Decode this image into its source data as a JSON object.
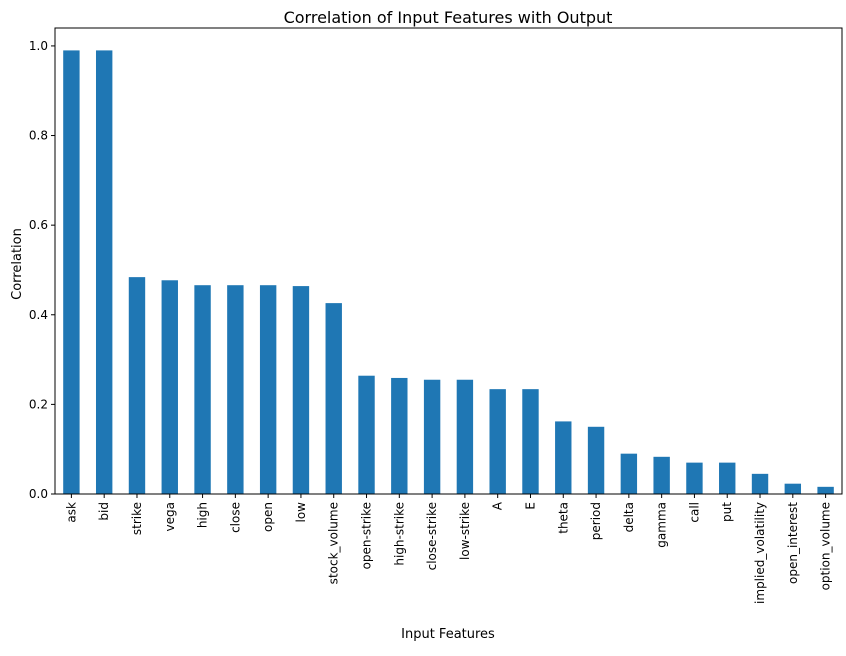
{
  "chart_data": {
    "type": "bar",
    "title": "Correlation of Input Features with Output",
    "xlabel": "Input Features",
    "ylabel": "Correlation",
    "ylim": [
      0,
      1.04
    ],
    "yticks": [
      "0.0",
      "0.2",
      "0.4",
      "0.6",
      "0.8",
      "1.0"
    ],
    "grid": false,
    "bar_color": "#1f77b4",
    "categories": [
      "ask",
      "bid",
      "strike",
      "vega",
      "high",
      "close",
      "open",
      "low",
      "stock_volume",
      "open-strike",
      "high-strike",
      "close-strike",
      "low-strike",
      "A",
      "E",
      "theta",
      "period",
      "delta",
      "gamma",
      "call",
      "put",
      "implied_volatility",
      "open_interest",
      "option_volume"
    ],
    "values": [
      0.99,
      0.99,
      0.484,
      0.477,
      0.466,
      0.466,
      0.466,
      0.464,
      0.426,
      0.264,
      0.259,
      0.255,
      0.255,
      0.234,
      0.234,
      0.162,
      0.15,
      0.09,
      0.083,
      0.07,
      0.07,
      0.045,
      0.023,
      0.016
    ]
  }
}
